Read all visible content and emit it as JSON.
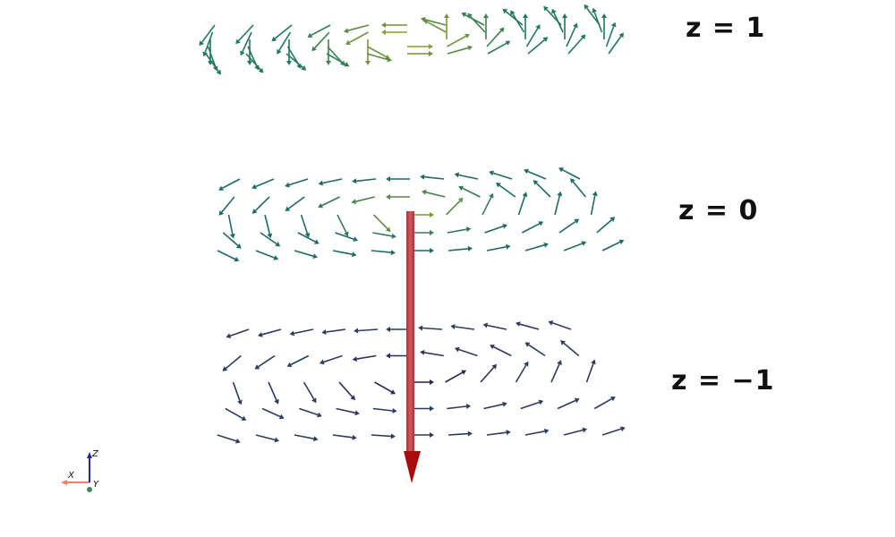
{
  "planes": [
    {
      "label": "z = 1",
      "colormap": "green-yellow",
      "description_key": "top"
    },
    {
      "label": "z = 0",
      "colormap": "teal-yellow",
      "description_key": "mid"
    },
    {
      "label": "z = −1",
      "colormap": "navy-purple",
      "description_key": "bot"
    }
  ],
  "colors": {
    "current_arrow": "#c0484c",
    "current_arrow_head": "#a80c0c",
    "top_field": "#1f7a5a",
    "top_center": "#d8b21a",
    "mid_field": "#1d6a66",
    "mid_center": "#a6b420",
    "bot_field": "#2a3b5e",
    "bot_center": "#3a0a4a",
    "axis_x": "#f08060",
    "axis_z": "#1c2aa0",
    "axis_y": "#3a8a5a"
  },
  "axes": {
    "x": "X",
    "y": "Y",
    "z": "Z"
  }
}
